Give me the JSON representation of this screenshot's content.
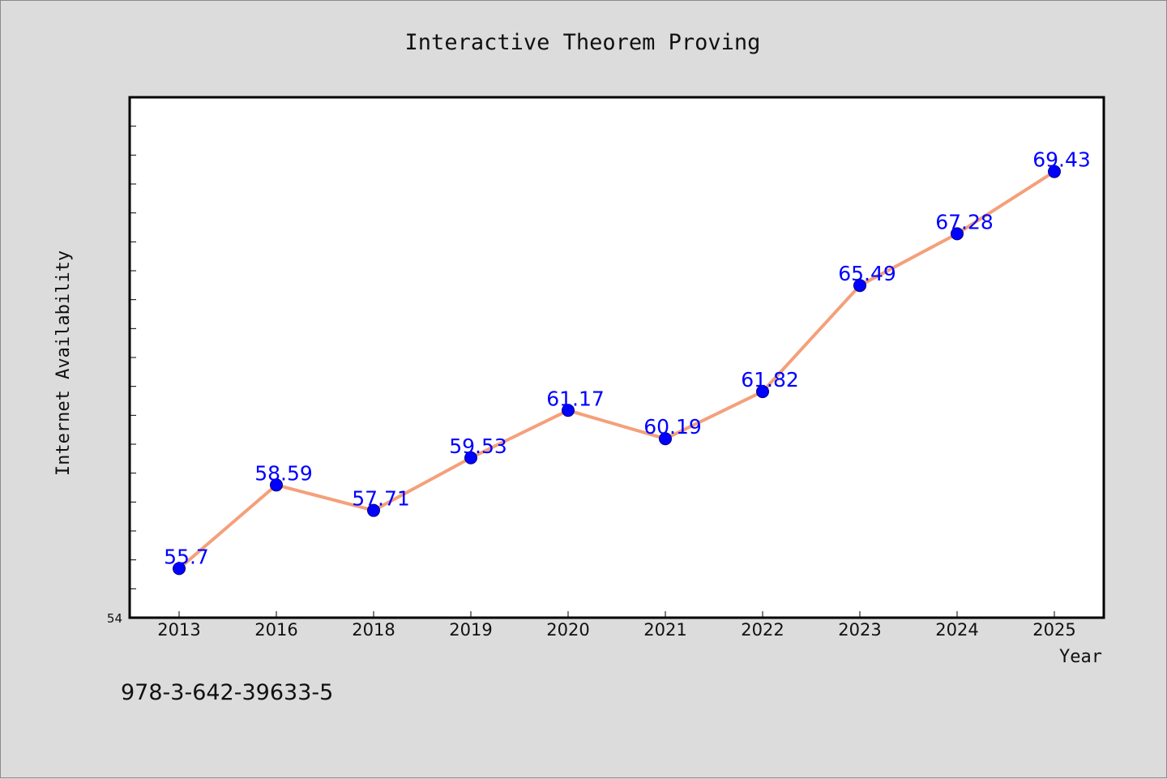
{
  "chart_data": {
    "type": "line",
    "title": "Interactive Theorem Proving",
    "xlabel": "Year",
    "ylabel": "Internet Availability",
    "categories": [
      "2013",
      "2016",
      "2018",
      "2019",
      "2020",
      "2021",
      "2022",
      "2023",
      "2024",
      "2025"
    ],
    "series": [
      {
        "values": [
          55.7,
          58.59,
          57.71,
          59.53,
          61.17,
          60.19,
          61.82,
          65.49,
          67.28,
          69.43
        ],
        "labels": [
          "55.7",
          "58.59",
          "57.71",
          "59.53",
          "61.17",
          "60.19",
          "61.82",
          "65.49",
          "67.28",
          "69.43"
        ]
      }
    ],
    "ylim": [
      54,
      72
    ],
    "y_min_tick_label": "54",
    "y_minor_tick_step": 1,
    "grid": false,
    "legend": "none",
    "colors": {
      "line": "#f4a07a",
      "marker": "#0000ff",
      "marker_edge": "#000080",
      "data_label": "#0000ff",
      "plot_background": "#ffffff",
      "figure_background": "#dcdcdc"
    }
  },
  "annotation": {
    "isbn": "978-3-642-39633-5"
  }
}
